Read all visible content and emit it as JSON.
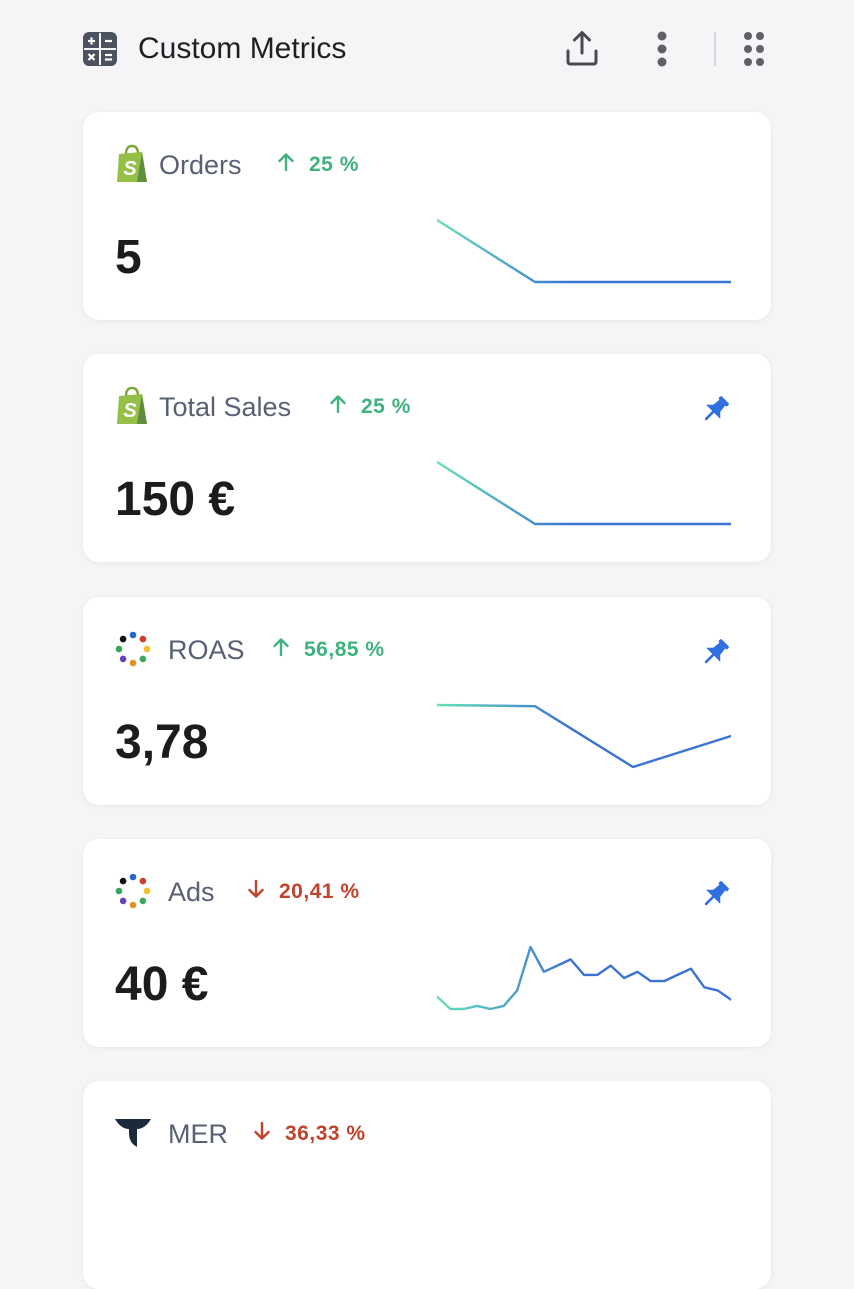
{
  "header": {
    "title": "Custom Metrics",
    "icons": [
      "calculator-icon",
      "share-icon",
      "more-vertical-icon",
      "drag-handle-icon"
    ]
  },
  "colors": {
    "up": "#3fb27f",
    "down": "#c0432b",
    "pin": "#2f6fe0",
    "spark_start": "#67e0b8",
    "spark_end": "#3b73d4"
  },
  "metrics": [
    {
      "name": "Orders",
      "source_icon": "shopify-bag-icon",
      "change": "25 %",
      "direction": "up",
      "value": "5",
      "pinned": false,
      "trend": [
        2,
        1,
        1,
        1
      ]
    },
    {
      "name": "Total Sales",
      "source_icon": "shopify-bag-icon",
      "change": "25 %",
      "direction": "up",
      "value": "150 €",
      "pinned": true,
      "trend": [
        2,
        1,
        1,
        1
      ]
    },
    {
      "name": "ROAS",
      "source_icon": "multicolor-dots-icon",
      "change": "56,85 %",
      "direction": "up",
      "value": "3,78",
      "pinned": true,
      "trend": [
        3.0,
        2.98,
        2.0,
        2.5
      ]
    },
    {
      "name": "Ads",
      "source_icon": "multicolor-dots-icon",
      "change": "20,41 %",
      "direction": "down",
      "value": "40 €",
      "pinned": true,
      "trend": [
        12,
        10,
        10,
        10.5,
        10,
        10.5,
        13,
        20,
        16,
        17,
        18,
        15.5,
        15.5,
        17,
        15,
        16,
        14.5,
        14.5,
        15.5,
        16.5,
        13.5,
        13,
        11.5
      ]
    },
    {
      "name": "MER",
      "source_icon": "triple-whale-icon",
      "change": "36,33 %",
      "direction": "down",
      "value": "",
      "pinned": false,
      "trend": []
    }
  ]
}
